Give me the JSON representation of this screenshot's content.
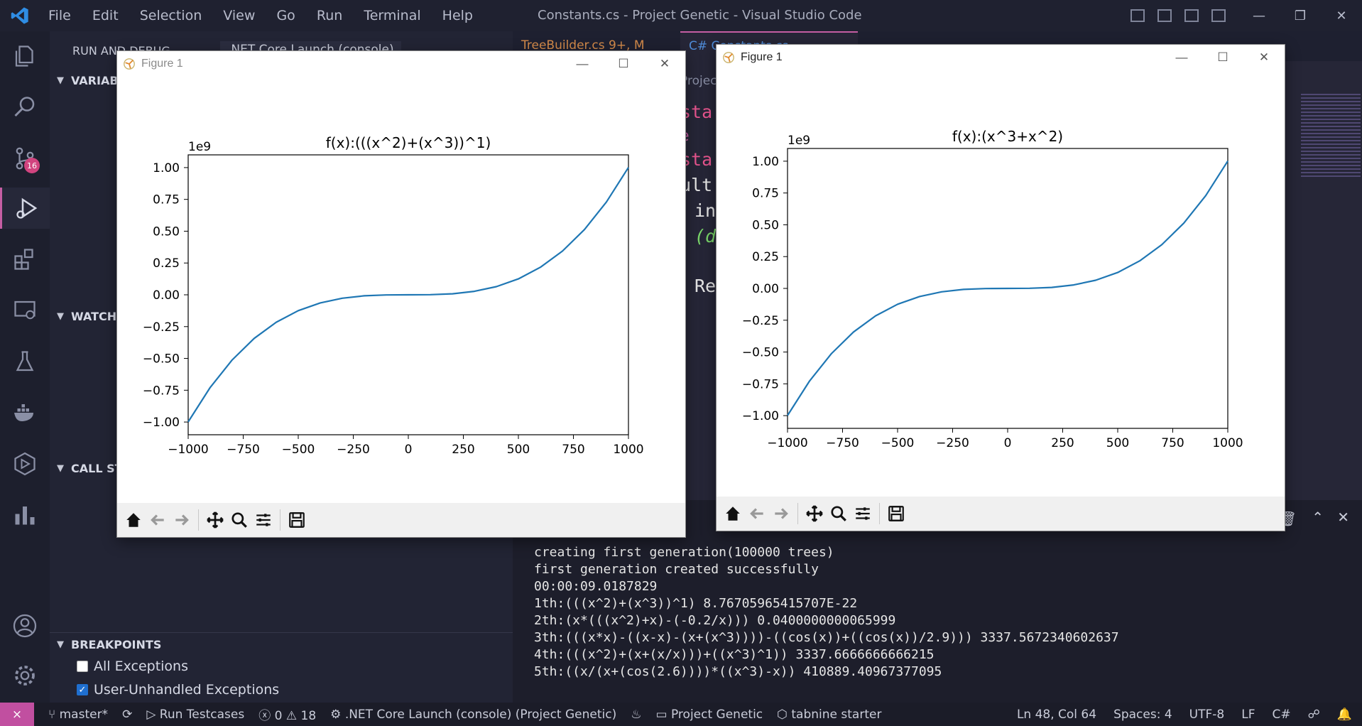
{
  "app": {
    "menu": [
      "File",
      "Edit",
      "Selection",
      "View",
      "Go",
      "Run",
      "Terminal",
      "Help"
    ],
    "window_title": "Constants.cs - Project Genetic - Visual Studio Code",
    "window_controls": [
      "—",
      "❐",
      "✕"
    ]
  },
  "activity_badge": "16",
  "sidebar": {
    "run_title": "RUN AND DEBUG",
    "launch_config": ".NET Core Launch (console)",
    "sections": {
      "variables": "VARIABLES",
      "watch": "WATCH",
      "call_stack": "CALL STACK",
      "breakpoints": "BREAKPOINTS"
    },
    "breakpoints": [
      {
        "label": "All Exceptions",
        "checked": false
      },
      {
        "label": "User-Unhandled Exceptions",
        "checked": true
      }
    ]
  },
  "editor": {
    "tabs": [
      "TreeBuilder.cs 9+, M",
      "C# Constants.cs"
    ],
    "breadcrumb": "Project_Genetic",
    "code_fragments": [
      "sta",
      "e",
      "sta",
      "ult",
      "in",
      "(d",
      "Re"
    ]
  },
  "terminal": {
    "lines": [
      "creating first generation(100000 trees)",
      "first generation created successfully",
      "",
      "00:00:09.0187829",
      "1th:(((x^2)+(x^3))^1) 8.76705965415707E-22",
      "2th:(x*(((x^2)+x)-(-0.2/x))) 0.0400000000065999",
      "3th:(((x*x)-((x-x)-(x+(x^3))))-((cos(x))+((cos(x))/2.9))) 3337.5672340602637",
      "4th:(((x^2)+(x+(x/x)))+((x^3)^1)) 3337.6666666666215",
      "5th:((x/(x+(cos(2.6))))*((x^3)-x)) 410889.40967377095"
    ]
  },
  "statusbar": {
    "branch": "master*",
    "run_testcases": "Run Testcases",
    "errors": "0",
    "warnings": "18",
    "launch": ".NET Core Launch (console) (Project Genetic)",
    "project": "Project Genetic",
    "tabnine": "tabnine starter",
    "position": "Ln 48, Col 64",
    "spaces": "Spaces: 4",
    "encoding": "UTF-8",
    "eol": "LF",
    "language": "C#"
  },
  "figures": [
    {
      "window_title": "Figure 1"
    },
    {
      "window_title": "Figure 1"
    }
  ],
  "chart_data": [
    {
      "type": "line",
      "title": "f(x):(((x^2)+(x^3))^1)",
      "offset_label": "1e9",
      "xlabel": "",
      "ylabel": "",
      "xlim": [
        -1000,
        1000
      ],
      "ylim": [
        -1.1,
        1.1
      ],
      "x_ticks": [
        -1000,
        -750,
        -500,
        -250,
        0,
        250,
        500,
        750,
        1000
      ],
      "x_tick_labels": [
        "−1000",
        "−750",
        "−500",
        "−250",
        "0",
        "250",
        "500",
        "750",
        "1000"
      ],
      "y_ticks": [
        -1.0,
        -0.75,
        -0.5,
        -0.25,
        0,
        0.25,
        0.5,
        0.75,
        1.0
      ],
      "y_tick_labels": [
        "−1.00",
        "−0.75",
        "−0.50",
        "−0.25",
        "0.00",
        "0.25",
        "0.50",
        "0.75",
        "1.00"
      ],
      "series": [
        {
          "color": "#1f77b4",
          "x": [
            -1000,
            -900,
            -800,
            -700,
            -600,
            -500,
            -400,
            -300,
            -200,
            -100,
            0,
            100,
            200,
            300,
            400,
            500,
            600,
            700,
            800,
            900,
            1000
          ],
          "y": [
            -0.999,
            -0.728,
            -0.5114,
            -0.3425,
            -0.2156,
            -0.12475,
            -0.0638,
            -0.0269,
            -0.00796,
            -0.00099,
            0,
            0.00101,
            0.00804,
            0.0271,
            0.0642,
            0.12525,
            0.2164,
            0.3435,
            0.5126,
            0.7298,
            1.001
          ]
        }
      ]
    },
    {
      "type": "line",
      "title": "f(x):(x^3+x^2)",
      "offset_label": "1e9",
      "xlabel": "",
      "ylabel": "",
      "xlim": [
        -1000,
        1000
      ],
      "ylim": [
        -1.1,
        1.1
      ],
      "x_ticks": [
        -1000,
        -750,
        -500,
        -250,
        0,
        250,
        500,
        750,
        1000
      ],
      "x_tick_labels": [
        "−1000",
        "−750",
        "−500",
        "−250",
        "0",
        "250",
        "500",
        "750",
        "1000"
      ],
      "y_ticks": [
        -1.0,
        -0.75,
        -0.5,
        -0.25,
        0,
        0.25,
        0.5,
        0.75,
        1.0
      ],
      "y_tick_labels": [
        "−1.00",
        "−0.75",
        "−0.50",
        "−0.25",
        "0.00",
        "0.25",
        "0.50",
        "0.75",
        "1.00"
      ],
      "series": [
        {
          "color": "#1f77b4",
          "x": [
            -1000,
            -900,
            -800,
            -700,
            -600,
            -500,
            -400,
            -300,
            -200,
            -100,
            0,
            100,
            200,
            300,
            400,
            500,
            600,
            700,
            800,
            900,
            1000
          ],
          "y": [
            -0.999,
            -0.728,
            -0.5114,
            -0.3425,
            -0.2156,
            -0.12475,
            -0.0638,
            -0.0269,
            -0.00796,
            -0.00099,
            0,
            0.00101,
            0.00804,
            0.0271,
            0.0642,
            0.12525,
            0.2164,
            0.3435,
            0.5126,
            0.7298,
            1.001
          ]
        }
      ]
    }
  ]
}
